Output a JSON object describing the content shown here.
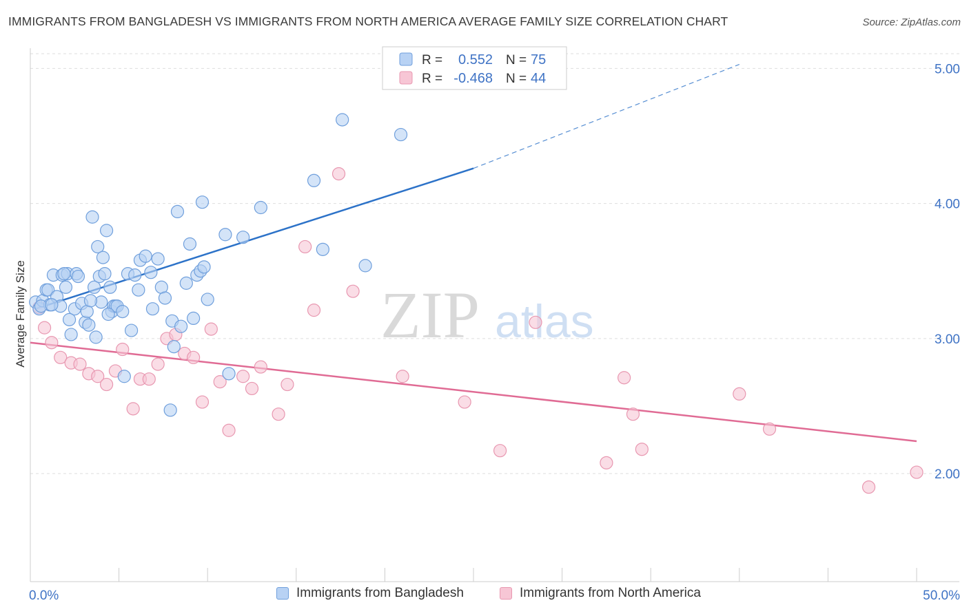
{
  "header": {
    "title": "IMMIGRANTS FROM BANGLADESH VS IMMIGRANTS FROM NORTH AMERICA AVERAGE FAMILY SIZE CORRELATION CHART",
    "source": "Source: ZipAtlas.com"
  },
  "watermark": {
    "zip": "ZIP",
    "atlas": "atlas"
  },
  "legend": {
    "rows": [
      {
        "r_label": "R =",
        "r_value": "0.552",
        "n_label": "N =",
        "n_value": "75"
      },
      {
        "r_label": "R =",
        "r_value": "-0.468",
        "n_label": "N =",
        "n_value": "44"
      }
    ]
  },
  "bottom_legend": {
    "items": [
      "Immigrants from Bangladesh",
      "Immigrants from North America"
    ]
  },
  "colors": {
    "blue_fill": "#b8d2f4",
    "blue_stroke": "#6f9fdc",
    "blue_line": "#2c72c8",
    "pink_fill": "#f7c6d5",
    "pink_stroke": "#e897b0",
    "pink_line": "#e06b94",
    "value_text": "#3f73c5",
    "grid": "#dddddd"
  },
  "chart_data": {
    "type": "scatter",
    "xlabel": "",
    "ylabel": "Average Family Size",
    "xlim": [
      0,
      50
    ],
    "ylim": [
      1.2,
      5.15
    ],
    "x_tick_labels": [
      {
        "value": 0,
        "label": "0.0%"
      },
      {
        "value": 50,
        "label": "50.0%"
      }
    ],
    "y_tick_labels": [
      {
        "value": 2.0,
        "label": "2.00"
      },
      {
        "value": 3.0,
        "label": "3.00"
      },
      {
        "value": 4.0,
        "label": "4.00"
      },
      {
        "value": 5.0,
        "label": "5.00"
      }
    ],
    "grid": true,
    "legend_position": "top-center",
    "series": [
      {
        "name": "Immigrants from Bangladesh",
        "color": "#6f9fdc",
        "points": [
          [
            0.3,
            3.27
          ],
          [
            0.5,
            3.22
          ],
          [
            0.7,
            3.28
          ],
          [
            0.9,
            3.36
          ],
          [
            1.1,
            3.25
          ],
          [
            1.3,
            3.47
          ],
          [
            1.0,
            3.36
          ],
          [
            1.5,
            3.31
          ],
          [
            1.7,
            3.24
          ],
          [
            1.8,
            3.47
          ],
          [
            2.0,
            3.38
          ],
          [
            2.1,
            3.48
          ],
          [
            2.3,
            3.03
          ],
          [
            2.5,
            3.22
          ],
          [
            2.6,
            3.48
          ],
          [
            2.7,
            3.46
          ],
          [
            1.9,
            3.48
          ],
          [
            2.9,
            3.26
          ],
          [
            3.1,
            3.12
          ],
          [
            3.2,
            3.2
          ],
          [
            3.3,
            3.1
          ],
          [
            3.5,
            3.9
          ],
          [
            3.6,
            3.38
          ],
          [
            3.7,
            3.01
          ],
          [
            3.8,
            3.68
          ],
          [
            3.9,
            3.46
          ],
          [
            4.0,
            3.27
          ],
          [
            4.1,
            3.6
          ],
          [
            4.2,
            3.48
          ],
          [
            4.3,
            3.8
          ],
          [
            4.5,
            3.38
          ],
          [
            4.6,
            3.2
          ],
          [
            4.7,
            3.24
          ],
          [
            4.8,
            3.24
          ],
          [
            4.9,
            3.24
          ],
          [
            5.2,
            3.2
          ],
          [
            5.3,
            2.72
          ],
          [
            5.5,
            3.48
          ],
          [
            5.7,
            3.06
          ],
          [
            5.9,
            3.47
          ],
          [
            6.1,
            3.36
          ],
          [
            6.2,
            3.58
          ],
          [
            6.5,
            3.61
          ],
          [
            6.8,
            3.49
          ],
          [
            7.2,
            3.59
          ],
          [
            7.4,
            3.38
          ],
          [
            7.6,
            3.3
          ],
          [
            7.9,
            2.47
          ],
          [
            8.0,
            3.13
          ],
          [
            8.1,
            2.94
          ],
          [
            8.3,
            3.94
          ],
          [
            8.5,
            3.09
          ],
          [
            8.8,
            3.41
          ],
          [
            9.0,
            3.7
          ],
          [
            9.2,
            3.15
          ],
          [
            9.4,
            3.47
          ],
          [
            9.6,
            3.5
          ],
          [
            9.7,
            4.01
          ],
          [
            9.8,
            3.53
          ],
          [
            10.0,
            3.29
          ],
          [
            11.0,
            3.77
          ],
          [
            11.2,
            2.74
          ],
          [
            12.0,
            3.75
          ],
          [
            13.0,
            3.97
          ],
          [
            16.0,
            4.17
          ],
          [
            16.5,
            3.66
          ],
          [
            17.6,
            4.62
          ],
          [
            18.9,
            3.54
          ],
          [
            20.9,
            4.51
          ],
          [
            0.6,
            3.24
          ],
          [
            1.2,
            3.25
          ],
          [
            2.2,
            3.14
          ],
          [
            3.4,
            3.28
          ],
          [
            4.4,
            3.18
          ],
          [
            6.9,
            3.22
          ]
        ]
      },
      {
        "name": "Immigrants from North America",
        "color": "#e897b0",
        "points": [
          [
            0.5,
            3.23
          ],
          [
            0.8,
            3.08
          ],
          [
            1.2,
            2.97
          ],
          [
            1.7,
            2.86
          ],
          [
            2.3,
            2.82
          ],
          [
            2.8,
            2.81
          ],
          [
            3.3,
            2.74
          ],
          [
            3.8,
            2.72
          ],
          [
            4.3,
            2.66
          ],
          [
            4.8,
            2.76
          ],
          [
            5.2,
            2.92
          ],
          [
            5.8,
            2.48
          ],
          [
            6.2,
            2.7
          ],
          [
            6.7,
            2.7
          ],
          [
            7.2,
            2.81
          ],
          [
            7.7,
            3.0
          ],
          [
            8.2,
            3.03
          ],
          [
            8.7,
            2.89
          ],
          [
            9.2,
            2.86
          ],
          [
            9.7,
            2.53
          ],
          [
            10.2,
            3.07
          ],
          [
            10.7,
            2.68
          ],
          [
            11.2,
            2.32
          ],
          [
            12.0,
            2.72
          ],
          [
            12.5,
            2.63
          ],
          [
            13.0,
            2.79
          ],
          [
            14.0,
            2.44
          ],
          [
            14.5,
            2.66
          ],
          [
            15.5,
            3.68
          ],
          [
            16.0,
            3.21
          ],
          [
            17.4,
            4.22
          ],
          [
            18.2,
            3.35
          ],
          [
            21.0,
            2.72
          ],
          [
            24.5,
            2.53
          ],
          [
            26.5,
            2.17
          ],
          [
            28.5,
            3.12
          ],
          [
            32.5,
            2.08
          ],
          [
            33.5,
            2.71
          ],
          [
            34.0,
            2.44
          ],
          [
            34.5,
            2.18
          ],
          [
            40.0,
            2.59
          ],
          [
            41.7,
            2.33
          ],
          [
            47.3,
            1.9
          ],
          [
            50.0,
            2.01
          ]
        ]
      }
    ],
    "trendlines": [
      {
        "series": "Immigrants from Bangladesh",
        "x": [
          0.3,
          25.0
        ],
        "y": [
          3.22,
          4.26
        ],
        "dashed_extension_to": [
          40.0,
          5.03
        ]
      },
      {
        "series": "Immigrants from North America",
        "x": [
          0.0,
          50.0
        ],
        "y": [
          2.97,
          2.24
        ]
      }
    ]
  }
}
